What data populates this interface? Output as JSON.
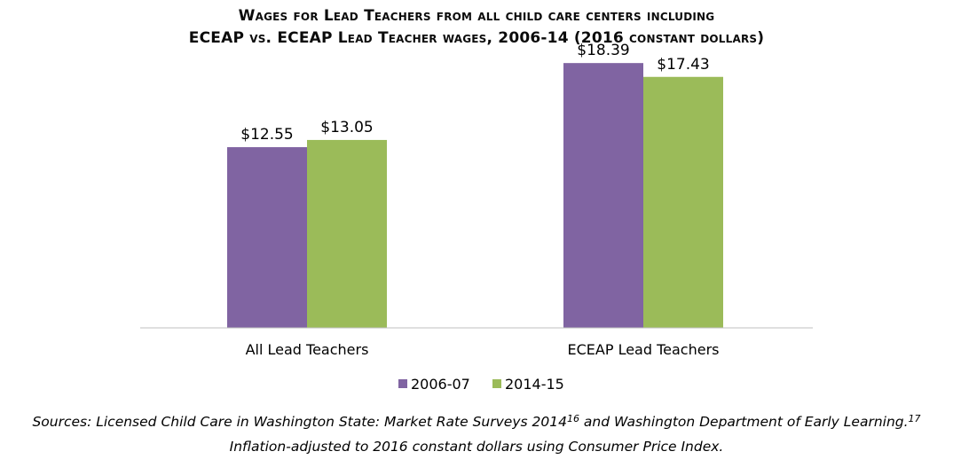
{
  "chart_data": {
    "type": "bar",
    "title_line1": "Wages for Lead Teachers from all child care centers including",
    "title_line2": "ECEAP vs. ECEAP Lead Teacher wages, 2006-14 (2016 constant dollars)",
    "categories": [
      "All Lead Teachers",
      "ECEAP Lead Teachers"
    ],
    "series": [
      {
        "name": "2006-07",
        "values": [
          12.55,
          18.39
        ],
        "labels": [
          "$12.55",
          "$18.39"
        ],
        "color": "#8064a2"
      },
      {
        "name": "2014-15",
        "values": [
          13.05,
          17.43
        ],
        "labels": [
          "$13.05",
          "$17.43"
        ],
        "color": "#9bbb59"
      }
    ],
    "ylim": [
      0,
      20
    ],
    "grid": false,
    "legend_position": "bottom"
  },
  "sources": {
    "line1_a": "Sources: Licensed Child Care in Washington State: Market Rate Surveys 2014",
    "ref1": "16",
    "line1_b": " and Washington Department of Early Learning.",
    "ref2": "17",
    "line2": "Inflation-adjusted to 2016 constant dollars using Consumer Price Index."
  }
}
